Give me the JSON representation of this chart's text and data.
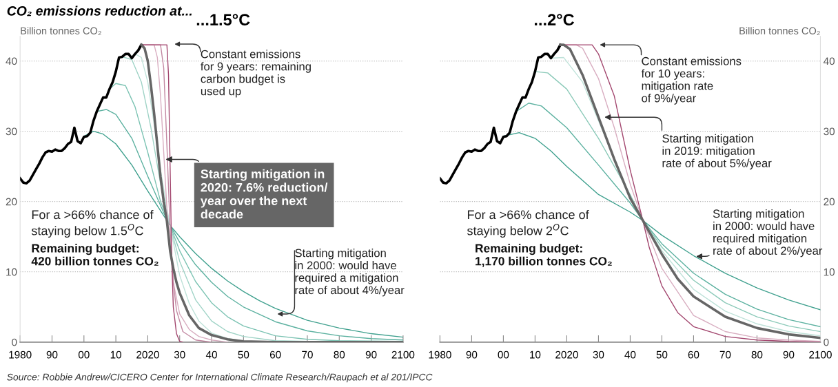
{
  "chart_data": [
    {
      "type": "line",
      "subtitle": "CO₂ emissions reduction at...",
      "title": "...1.5°C",
      "ylabel": "Billion tonnes CO₂",
      "xlim": [
        1980,
        2100
      ],
      "ylim": [
        0,
        43.5
      ],
      "xticks": [
        1980,
        {
          "value": 1990,
          "label": "90"
        },
        {
          "value": 2000,
          "label": "00"
        },
        {
          "value": 2010,
          "label": "10"
        },
        2020,
        {
          "value": 2030,
          "label": "30"
        },
        {
          "value": 2040,
          "label": "40"
        },
        {
          "value": 2050,
          "label": "50"
        },
        {
          "value": 2060,
          "label": "60"
        },
        {
          "value": 2070,
          "label": "70"
        },
        {
          "value": 2080,
          "label": "80"
        },
        {
          "value": 2090,
          "label": "90"
        },
        2100
      ],
      "yticks": [
        0,
        10,
        20,
        30,
        40
      ],
      "grid": "y",
      "line_style": "solid",
      "marker": "none",
      "series": [
        {
          "color": "#000000",
          "x": [
            1980,
            1981,
            1982,
            1983,
            1984,
            1985,
            1986,
            1987,
            1988,
            1989,
            1990,
            1991,
            1992,
            1993,
            1994,
            1995,
            1996,
            1997,
            1998,
            1999,
            2000,
            2001,
            2002,
            2003,
            2004,
            2005,
            2006,
            2007,
            2008,
            2009,
            2010,
            2011,
            2012,
            2013,
            2014,
            2015,
            2016,
            2017,
            2018
          ],
          "values": [
            23.3,
            22.7,
            22.6,
            23.0,
            23.8,
            24.6,
            25.4,
            26.3,
            27.0,
            27.2,
            27.1,
            27.4,
            27.2,
            27.2,
            27.6,
            28.2,
            28.5,
            30.5,
            28.6,
            28.3,
            29.2,
            29.3,
            29.8,
            31.5,
            32.8,
            33.8,
            34.8,
            34.8,
            36.0,
            37.0,
            38.5,
            40.5,
            40.6,
            41.0,
            41.0,
            40.4,
            41.0,
            41.5,
            42.3
          ]
        },
        {
          "color": "#666666",
          "x": [
            2018,
            2019,
            2020,
            2021,
            2022,
            2023,
            2024,
            2025,
            2026,
            2027,
            2028,
            2029,
            2030,
            2033,
            2036,
            2040,
            2045,
            2050,
            2060,
            2100
          ],
          "values": [
            42.3,
            41.8,
            40.0,
            36.5,
            32.5,
            28.0,
            23.5,
            20.0,
            17.2,
            13.0,
            10.5,
            8.5,
            7.0,
            3.8,
            2.0,
            1.0,
            0.4,
            0.1,
            0.0,
            0.0
          ]
        },
        {
          "color": "#3fa08e",
          "x": [
            2000,
            2003,
            2006,
            2010,
            2015,
            2020,
            2025,
            2027,
            2030,
            2035,
            2040,
            2045,
            2050,
            2055,
            2060,
            2070,
            2080,
            2090,
            2100
          ],
          "values": [
            29.3,
            30.0,
            29.6,
            28.2,
            25.2,
            21.5,
            18.0,
            16.6,
            15.0,
            12.6,
            10.5,
            8.7,
            7.2,
            5.9,
            4.8,
            3.1,
            2.0,
            1.2,
            0.7
          ]
        },
        {
          "color": "#5cb1a0",
          "x": [
            2004,
            2007,
            2010,
            2015,
            2020,
            2025,
            2027,
            2030,
            2035,
            2040,
            2045,
            2050,
            2060,
            2070,
            2080,
            2090,
            2100
          ],
          "values": [
            32.8,
            33.1,
            32.4,
            29.0,
            23.6,
            18.4,
            16.6,
            14.2,
            11.0,
            8.5,
            6.5,
            5.0,
            2.9,
            1.6,
            0.9,
            0.5,
            0.3
          ]
        },
        {
          "color": "#7cc3b3",
          "x": [
            2008,
            2010,
            2013,
            2016,
            2020,
            2024,
            2027,
            2030,
            2035,
            2040,
            2045,
            2050,
            2060,
            2070,
            2080,
            2100
          ],
          "values": [
            36.0,
            36.8,
            36.5,
            33.5,
            27.0,
            20.0,
            16.6,
            13.0,
            8.6,
            5.6,
            3.6,
            2.3,
            0.9,
            0.4,
            0.2,
            0.1
          ]
        },
        {
          "color": "#9fd3c6",
          "x": [
            2012,
            2015,
            2018,
            2021,
            2024,
            2027,
            2030,
            2035,
            2040,
            2045,
            2050,
            2060,
            2070
          ],
          "values": [
            40.6,
            40.2,
            37.0,
            30.5,
            22.5,
            16.6,
            11.5,
            6.0,
            3.0,
            1.5,
            0.8,
            0.2,
            0.1
          ]
        },
        {
          "color": "#bfe2d9",
          "x": [
            2016,
            2018,
            2020,
            2022,
            2024,
            2026,
            2027,
            2030,
            2033,
            2036,
            2040,
            2045,
            2050
          ],
          "values": [
            41.0,
            40.5,
            37.0,
            31.0,
            24.5,
            19.0,
            16.6,
            9.5,
            5.5,
            3.0,
            1.3,
            0.5,
            0.2
          ]
        },
        {
          "color": "#d8adc0",
          "x": [
            2018,
            2022,
            2023,
            2024,
            2025,
            2026,
            2027,
            2028,
            2030,
            2033,
            2036,
            2040,
            2045
          ],
          "values": [
            42.3,
            42.3,
            40.5,
            35.0,
            27.0,
            19.0,
            13.5,
            8.5,
            4.0,
            1.8,
            0.8,
            0.3,
            0.0
          ]
        },
        {
          "color": "#c287a1",
          "x": [
            2018,
            2024,
            2025,
            2026,
            2027,
            2028,
            2029,
            2031,
            2035,
            2040
          ],
          "values": [
            42.3,
            42.3,
            39.0,
            28.0,
            16.0,
            8.5,
            4.5,
            1.5,
            0.3,
            0.0
          ]
        },
        {
          "color": "#a3476f",
          "x": [
            2018,
            2026,
            2026.5,
            2027,
            2027.5,
            2028,
            2029,
            2030,
            2031
          ],
          "values": [
            42.3,
            42.3,
            38.0,
            25.0,
            12.0,
            5.0,
            1.2,
            0.1,
            0.0
          ]
        }
      ],
      "annotations": [
        "Constant emissions\nfor 9 years: remaining\ncarbon budget is\nused up",
        {
          "text": "Starting mitigation in\n2020: 7.6% reduction/\nyear over the next\ndecade",
          "x": 2025,
          "y": 26
        },
        "Starting mitigation\nin 2000: would have\nrequired a mitigation\nrate of about 4%/year",
        "For a >66% chance of\nstaying below 1.5$^{O}$C",
        "Remaining budget:\n420 billion tonnes CO₂",
        "Source: Robbie Andrew/CICERO Center for International Climate Research/Raupach et al 201/IPCC"
      ]
    },
    {
      "type": "line",
      "title": "...2°C",
      "ylabel": "Billion tonnes CO₂",
      "xlim": [
        1980,
        2100
      ],
      "ylim": [
        0,
        43.5
      ],
      "xticks": [
        1980,
        {
          "value": 1990,
          "label": "90"
        },
        {
          "value": 2000,
          "label": "00"
        },
        {
          "value": 2010,
          "label": "10"
        },
        2020,
        {
          "value": 2030,
          "label": "30"
        },
        {
          "value": 2040,
          "label": "40"
        },
        {
          "value": 2050,
          "label": "50"
        },
        {
          "value": 2060,
          "label": "60"
        },
        {
          "value": 2070,
          "label": "70"
        },
        {
          "value": 2080,
          "label": "80"
        },
        {
          "value": 2090,
          "label": "90"
        },
        2100
      ],
      "yticks": [
        0,
        10,
        20,
        30,
        40
      ],
      "grid": "y",
      "line_style": "solid",
      "marker": "none",
      "series": [
        {
          "color": "#000000",
          "x": [
            1980,
            1981,
            1982,
            1983,
            1984,
            1985,
            1986,
            1987,
            1988,
            1989,
            1990,
            1991,
            1992,
            1993,
            1994,
            1995,
            1996,
            1997,
            1998,
            1999,
            2000,
            2001,
            2002,
            2003,
            2004,
            2005,
            2006,
            2007,
            2008,
            2009,
            2010,
            2011,
            2012,
            2013,
            2014,
            2015,
            2016,
            2017,
            2018
          ],
          "values": [
            23.3,
            22.7,
            22.6,
            23.0,
            23.8,
            24.6,
            25.4,
            26.3,
            27.0,
            27.2,
            27.1,
            27.4,
            27.2,
            27.2,
            27.6,
            28.2,
            28.5,
            30.5,
            28.6,
            28.3,
            29.2,
            29.3,
            29.8,
            31.5,
            32.8,
            33.8,
            34.8,
            34.8,
            36.0,
            37.0,
            38.5,
            40.5,
            40.6,
            41.0,
            41.0,
            40.4,
            41.0,
            41.5,
            42.3
          ]
        },
        {
          "color": "#666666",
          "x": [
            2018,
            2019,
            2021,
            2025,
            2030,
            2035,
            2040,
            2044,
            2050,
            2055,
            2060,
            2070,
            2080,
            2090,
            2100
          ],
          "values": [
            42.3,
            42.3,
            41.7,
            38.0,
            32.0,
            26.0,
            20.5,
            17.3,
            12.5,
            9.0,
            6.5,
            3.6,
            2.0,
            1.1,
            0.6
          ]
        },
        {
          "color": "#3fa08e",
          "x": [
            2000,
            2005,
            2010,
            2015,
            2020,
            2030,
            2040,
            2044,
            2050,
            2060,
            2070,
            2080,
            2090,
            2100
          ],
          "values": [
            29.3,
            29.8,
            29.0,
            27.2,
            25.0,
            21.0,
            18.5,
            17.3,
            15.2,
            12.3,
            9.8,
            7.7,
            6.0,
            4.6
          ]
        },
        {
          "color": "#5cb1a0",
          "x": [
            2004,
            2008,
            2012,
            2020,
            2030,
            2040,
            2044,
            2050,
            2060,
            2070,
            2080,
            2090,
            2100
          ],
          "values": [
            32.8,
            34.0,
            33.6,
            30.5,
            25.2,
            19.8,
            17.3,
            14.0,
            9.8,
            6.8,
            4.7,
            3.2,
            2.2
          ]
        },
        {
          "color": "#8ccab9",
          "x": [
            2010,
            2014,
            2020,
            2030,
            2040,
            2044,
            2050,
            2060,
            2070,
            2080,
            2090,
            2100
          ],
          "values": [
            38.5,
            38.3,
            36.0,
            29.0,
            21.0,
            17.3,
            13.5,
            8.8,
            5.6,
            3.6,
            2.3,
            1.5
          ]
        },
        {
          "color": "#bfe2d9",
          "x": [
            2015,
            2019,
            2025,
            2030,
            2040,
            2044,
            2050,
            2060,
            2070,
            2080,
            2090,
            2100
          ],
          "values": [
            40.4,
            40.5,
            37.0,
            31.5,
            20.7,
            17.3,
            13.0,
            7.5,
            4.4,
            2.6,
            1.5,
            0.9
          ]
        },
        {
          "color": "#d8adc0",
          "x": [
            2018,
            2023,
            2025,
            2030,
            2035,
            2040,
            2044,
            2050,
            2060,
            2070,
            2080,
            2090,
            2100
          ],
          "values": [
            42.3,
            42.3,
            41.8,
            37.5,
            30.5,
            22.5,
            17.3,
            10.5,
            3.8,
            1.5,
            0.6,
            0.3,
            0.1
          ]
        },
        {
          "color": "#a3476f",
          "x": [
            2018,
            2028,
            2030,
            2035,
            2040,
            2044,
            2046,
            2050,
            2055,
            2060,
            2070,
            2080,
            2090,
            2100
          ],
          "values": [
            42.3,
            42.3,
            41.0,
            35.0,
            24.5,
            17.3,
            13.5,
            8.0,
            4.2,
            2.2,
            0.8,
            0.3,
            0.1,
            0.0
          ]
        }
      ],
      "annotations": [
        "Constant emissions\nfor 10 years:\nmitigation rate\nof 9%/year",
        {
          "text": "Starting mitigation\nin 2019: mitigation\nrate of about 5%/year",
          "x": 2031.3,
          "y": 32
        },
        {
          "text": "Starting mitigation\nin 2000: would have\nrequired mitigation\nrate of about 2%/year",
          "x": 2060.2,
          "y": 12.2
        },
        "For a >66% chance of\nstaying below 2$^{O}$C",
        "Remaining budget:\n1,170 billion tonnes CO₂"
      ]
    }
  ]
}
